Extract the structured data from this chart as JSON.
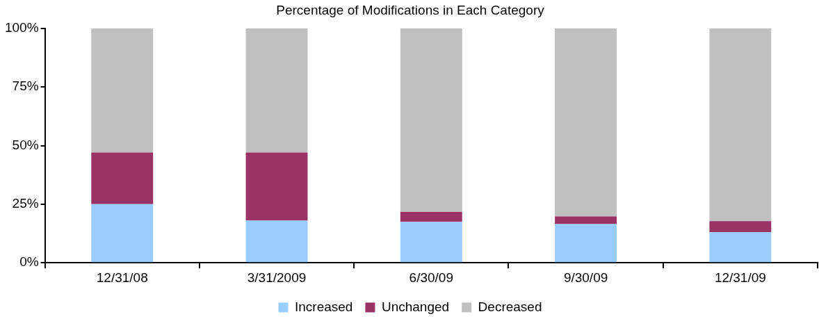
{
  "chart_data": {
    "type": "bar",
    "title": "Percentage of Modifications in Each Category",
    "stacked": true,
    "categories": [
      "12/31/08",
      "3/31/2009",
      "6/30/09",
      "9/30/09",
      "12/31/09"
    ],
    "series": [
      {
        "name": "Increased",
        "color": "#99ccff",
        "values": [
          25,
          18,
          17.5,
          16.5,
          13
        ]
      },
      {
        "name": "Unchanged",
        "color": "#993366",
        "values": [
          22,
          29,
          4.2,
          3.3,
          4.8
        ]
      },
      {
        "name": "Decreased",
        "color": "#c0c0c0",
        "values": [
          53,
          53,
          78.3,
          80.2,
          82.2
        ]
      }
    ],
    "ylim": [
      0,
      100
    ],
    "yticks": [
      {
        "value": 0,
        "label": "0%"
      },
      {
        "value": 25,
        "label": "25%"
      },
      {
        "value": 50,
        "label": "50%"
      },
      {
        "value": 75,
        "label": "75%"
      },
      {
        "value": 100,
        "label": "100%"
      }
    ],
    "grid": false,
    "legend": "bottom"
  }
}
